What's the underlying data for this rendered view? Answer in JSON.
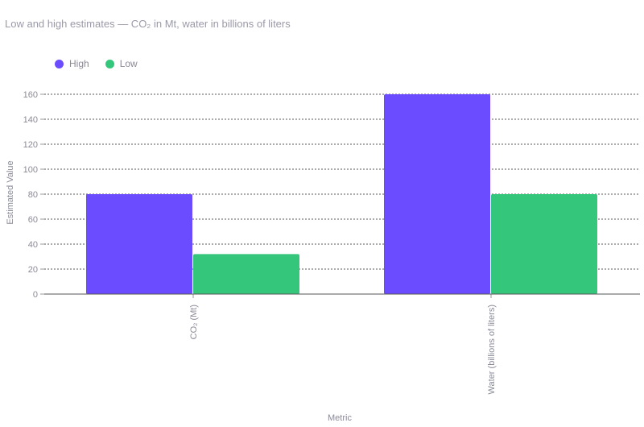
{
  "title": "Low and high estimates — CO₂ in Mt, water in billions of liters",
  "colors": {
    "High": "#6c4cff",
    "Low": "#34c77b"
  },
  "chart_data": {
    "type": "bar",
    "categories": [
      "CO₂ (Mt)",
      "Water (billions of liters)"
    ],
    "series": [
      {
        "name": "High",
        "values": [
          80,
          160
        ]
      },
      {
        "name": "Low",
        "values": [
          32,
          80
        ]
      }
    ],
    "xlabel": "Metric",
    "ylabel": "Estimated Value",
    "ylim": [
      0,
      160
    ],
    "yticks": [
      0,
      20,
      40,
      60,
      80,
      100,
      120,
      140,
      160
    ],
    "grid": true,
    "legend_position": "top-left"
  }
}
